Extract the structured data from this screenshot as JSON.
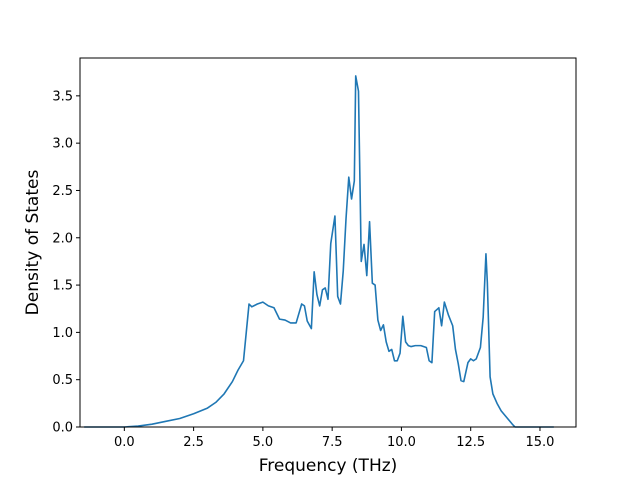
{
  "chart_data": {
    "type": "line",
    "title": "",
    "xlabel": "Frequency (THz)",
    "ylabel": "Density of States",
    "xlim": [
      -1.6,
      16.3
    ],
    "ylim": [
      0.0,
      3.9
    ],
    "grid": false,
    "xticks": [
      {
        "value": 0.0,
        "label": "0.0"
      },
      {
        "value": 2.5,
        "label": "2.5"
      },
      {
        "value": 5.0,
        "label": "5.0"
      },
      {
        "value": 7.5,
        "label": "7.5"
      },
      {
        "value": 10.0,
        "label": "10.0"
      },
      {
        "value": 12.5,
        "label": "12.5"
      },
      {
        "value": 15.0,
        "label": "15.0"
      }
    ],
    "yticks": [
      {
        "value": 0.0,
        "label": "0.0"
      },
      {
        "value": 0.5,
        "label": "0.5"
      },
      {
        "value": 1.0,
        "label": "1.0"
      },
      {
        "value": 1.5,
        "label": "1.5"
      },
      {
        "value": 2.0,
        "label": "2.0"
      },
      {
        "value": 2.5,
        "label": "2.5"
      },
      {
        "value": 3.0,
        "label": "3.0"
      },
      {
        "value": 3.5,
        "label": "3.5"
      }
    ],
    "series": [
      {
        "color": "#1f77b4",
        "x": [
          -1.45,
          -1.0,
          -0.5,
          0.0,
          0.5,
          1.0,
          1.5,
          2.0,
          2.5,
          3.0,
          3.3,
          3.6,
          3.9,
          4.1,
          4.3,
          4.4,
          4.5,
          4.6,
          4.8,
          5.0,
          5.2,
          5.4,
          5.6,
          5.8,
          6.0,
          6.2,
          6.4,
          6.5,
          6.6,
          6.75,
          6.85,
          6.95,
          7.05,
          7.15,
          7.25,
          7.35,
          7.45,
          7.6,
          7.7,
          7.8,
          7.9,
          8.0,
          8.1,
          8.2,
          8.3,
          8.35,
          8.45,
          8.55,
          8.65,
          8.75,
          8.85,
          8.95,
          9.05,
          9.15,
          9.25,
          9.35,
          9.45,
          9.55,
          9.65,
          9.75,
          9.85,
          9.95,
          10.05,
          10.15,
          10.25,
          10.35,
          10.5,
          10.7,
          10.9,
          11.0,
          11.1,
          11.2,
          11.35,
          11.45,
          11.55,
          11.7,
          11.85,
          11.95,
          12.05,
          12.15,
          12.25,
          12.4,
          12.5,
          12.6,
          12.7,
          12.85,
          12.95,
          13.05,
          13.1,
          13.2,
          13.3,
          13.45,
          13.6,
          13.8,
          14.0,
          14.1,
          14.3,
          14.8,
          15.5
        ],
        "y": [
          0.0,
          0.0,
          0.0,
          0.0,
          0.01,
          0.03,
          0.06,
          0.09,
          0.14,
          0.2,
          0.26,
          0.35,
          0.48,
          0.6,
          0.7,
          1.0,
          1.3,
          1.27,
          1.3,
          1.32,
          1.28,
          1.26,
          1.14,
          1.13,
          1.1,
          1.1,
          1.3,
          1.28,
          1.12,
          1.04,
          1.64,
          1.4,
          1.28,
          1.45,
          1.47,
          1.35,
          1.94,
          2.23,
          1.38,
          1.3,
          1.65,
          2.2,
          2.64,
          2.41,
          2.6,
          3.71,
          3.55,
          1.75,
          1.93,
          1.6,
          2.17,
          1.52,
          1.5,
          1.13,
          1.02,
          1.08,
          0.9,
          0.8,
          0.82,
          0.7,
          0.7,
          0.78,
          1.17,
          0.9,
          0.86,
          0.85,
          0.86,
          0.86,
          0.84,
          0.7,
          0.68,
          1.22,
          1.26,
          1.07,
          1.32,
          1.18,
          1.07,
          0.82,
          0.67,
          0.49,
          0.48,
          0.68,
          0.72,
          0.7,
          0.72,
          0.84,
          1.16,
          1.83,
          1.53,
          0.53,
          0.35,
          0.25,
          0.17,
          0.1,
          0.03,
          0.0,
          0.0,
          0.0,
          0.0
        ]
      }
    ]
  }
}
